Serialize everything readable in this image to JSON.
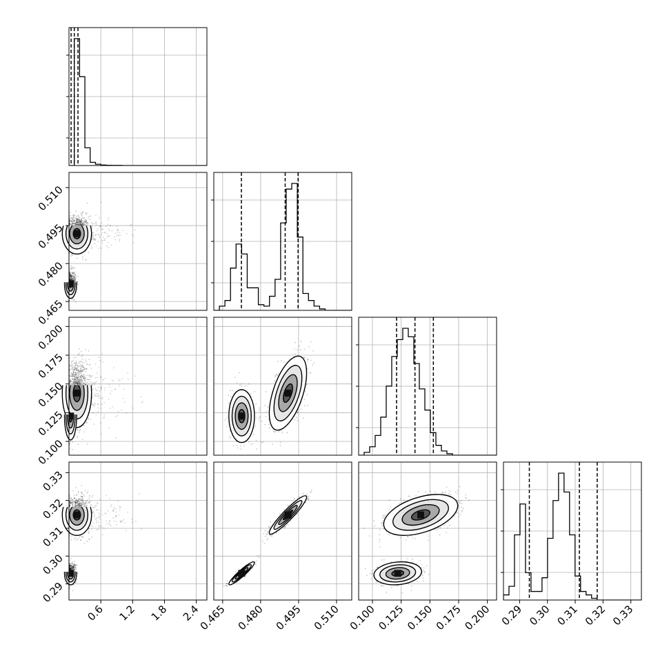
{
  "chart_data": {
    "type": "corner",
    "params": [
      {
        "id": "p0",
        "range": [
          0.0,
          2.6
        ],
        "ticks": [
          "0.6",
          "1.2",
          "1.8",
          "2.4"
        ],
        "tick_values": [
          0.6,
          1.2,
          1.8,
          2.4
        ],
        "quantiles": [
          0.04,
          0.1,
          0.17
        ]
      },
      {
        "id": "p1",
        "range": [
          0.4615,
          0.516
        ],
        "ticks": [
          "0.465",
          "0.480",
          "0.495",
          "0.510"
        ],
        "tick_values": [
          0.465,
          0.48,
          0.495,
          0.51
        ],
        "quantiles": [
          0.4724,
          0.4897,
          0.4948
        ]
      },
      {
        "id": "p2",
        "range": [
          0.088,
          0.208
        ],
        "ticks": [
          "0.100",
          "0.125",
          "0.150",
          "0.175",
          "0.200"
        ],
        "tick_values": [
          0.1,
          0.125,
          0.15,
          0.175,
          0.2
        ],
        "quantiles": [
          0.121,
          0.137,
          0.153
        ]
      },
      {
        "id": "p3",
        "range": [
          0.2842,
          0.3338
        ],
        "ticks": [
          "0.29",
          "0.30",
          "0.31",
          "0.32",
          "0.33"
        ],
        "tick_values": [
          0.29,
          0.3,
          0.31,
          0.32,
          0.33
        ],
        "quantiles": [
          0.2935,
          0.3115,
          0.3179
        ]
      }
    ],
    "histograms": [
      {
        "param": "p0",
        "bin_start": 0.0,
        "bin_width": 0.1,
        "counts": [
          0,
          1.0,
          0.7,
          0.14,
          0.025,
          0.01,
          0.004,
          0.002,
          0.001,
          0.001,
          0,
          0,
          0,
          0,
          0,
          0,
          0,
          0,
          0,
          0,
          0,
          0,
          0,
          0,
          0,
          0
        ]
      },
      {
        "param": "p1",
        "bin_start": 0.4615,
        "bin_width": 0.0022,
        "counts": [
          0,
          0.03,
          0.07,
          0.3,
          0.47,
          0.4,
          0.16,
          0.16,
          0.04,
          0.03,
          0.1,
          0.22,
          0.62,
          0.86,
          0.9,
          0.52,
          0.12,
          0.07,
          0.03,
          0.01,
          0,
          0,
          0,
          0,
          0
        ]
      },
      {
        "param": "p2",
        "bin_start": 0.088,
        "bin_width": 0.0048,
        "counts": [
          0,
          0.02,
          0.06,
          0.14,
          0.27,
          0.49,
          0.7,
          0.82,
          0.9,
          0.84,
          0.65,
          0.47,
          0.32,
          0.16,
          0.07,
          0.03,
          0.01,
          0,
          0,
          0,
          0,
          0,
          0,
          0,
          0
        ]
      },
      {
        "param": "p3",
        "bin_start": 0.2842,
        "bin_width": 0.00198,
        "counts": [
          0.03,
          0.08,
          0.38,
          0.56,
          0.16,
          0.05,
          0.05,
          0.13,
          0.36,
          0.58,
          0.74,
          0.63,
          0.38,
          0.14,
          0.05,
          0.03,
          0.01,
          0,
          0,
          0,
          0,
          0,
          0,
          0,
          0
        ]
      }
    ],
    "pairs": [
      {
        "x": "p0",
        "y": "p1",
        "modes": [
          {
            "cx": 0.15,
            "cy": 0.4918,
            "sx": 0.12,
            "sy": 0.0035,
            "rho": 0.0,
            "weight": 0.65,
            "tail_x": 1.2
          },
          {
            "cx": 0.03,
            "cy": 0.472,
            "sx": 0.05,
            "sy": 0.0025,
            "rho": 0.0,
            "weight": 0.35,
            "tail_x": 0.0
          }
        ]
      },
      {
        "x": "p0",
        "y": "p2",
        "modes": [
          {
            "cx": 0.15,
            "cy": 0.142,
            "sx": 0.12,
            "sy": 0.013,
            "rho": 0.0,
            "weight": 0.65,
            "tail_x": 1.2
          },
          {
            "cx": 0.03,
            "cy": 0.122,
            "sx": 0.05,
            "sy": 0.009,
            "rho": 0.0,
            "weight": 0.35,
            "tail_x": 0.0
          }
        ]
      },
      {
        "x": "p0",
        "y": "p3",
        "modes": [
          {
            "cx": 0.15,
            "cy": 0.3148,
            "sx": 0.12,
            "sy": 0.0032,
            "rho": 0.0,
            "weight": 0.65,
            "tail_x": 1.2
          },
          {
            "cx": 0.03,
            "cy": 0.2938,
            "sx": 0.05,
            "sy": 0.0018,
            "rho": 0.0,
            "weight": 0.35,
            "tail_x": 0.0
          }
        ]
      },
      {
        "x": "p1",
        "y": "p2",
        "modes": [
          {
            "cx": 0.4725,
            "cy": 0.122,
            "sx": 0.0022,
            "sy": 0.01,
            "rho": 0.0,
            "weight": 0.35,
            "tail_x": 0
          },
          {
            "cx": 0.4908,
            "cy": 0.142,
            "sx": 0.0032,
            "sy": 0.014,
            "rho": 0.55,
            "weight": 0.65,
            "tail_x": 0
          }
        ]
      },
      {
        "x": "p1",
        "y": "p3",
        "modes": [
          {
            "cx": 0.4725,
            "cy": 0.2938,
            "sx": 0.0022,
            "sy": 0.0018,
            "rho": 0.93,
            "weight": 0.35,
            "tail_x": 0
          },
          {
            "cx": 0.4908,
            "cy": 0.3148,
            "sx": 0.0032,
            "sy": 0.003,
            "rho": 0.93,
            "weight": 0.65,
            "tail_x": 0
          }
        ]
      },
      {
        "x": "p2",
        "y": "p3",
        "modes": [
          {
            "cx": 0.122,
            "cy": 0.2938,
            "sx": 0.009,
            "sy": 0.0018,
            "rho": 0.15,
            "weight": 0.35,
            "tail_x": 0
          },
          {
            "cx": 0.142,
            "cy": 0.3148,
            "sx": 0.014,
            "sy": 0.0032,
            "rho": 0.45,
            "weight": 0.65,
            "tail_x": 0
          }
        ]
      }
    ],
    "contour_levels_sigma": [
      0.5,
      1.0,
      1.5,
      2.0
    ],
    "grid": true,
    "colors": {
      "ink": "#000000",
      "grid": "#b0b0b0",
      "point": "#000000"
    }
  }
}
